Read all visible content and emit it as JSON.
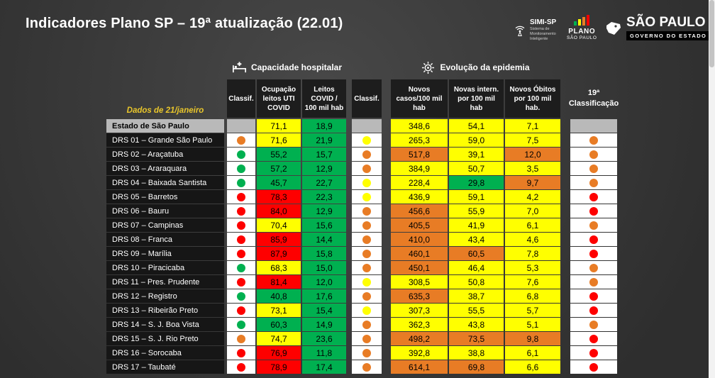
{
  "title": "Indicadores Plano SP – 19ª atualização (22.01)",
  "date_label": "Dados de 21/janeiro",
  "sections": {
    "hospital": "Capacidade hospitalar",
    "epidemia": "Evolução da epidemia"
  },
  "logos": {
    "simi": {
      "name": "SIMI-SP",
      "subtitle": "Sistema de Monitoramento Inteligente",
      "icon": "antenna-icon"
    },
    "plano": {
      "line1": "PLANO",
      "line2": "SÃO PAULO",
      "icon": "plano-bars-icon"
    },
    "gov": {
      "line1": "SÃO PAULO",
      "line2": "GOVERNO DO ESTADO",
      "icon": "sp-state-map-icon"
    }
  },
  "colors": {
    "green": "#00b050",
    "yellow": "#ffff00",
    "orange": "#e87c25",
    "red": "#fe0000",
    "gray": "#b9b9b9"
  },
  "chart_data": {
    "type": "table",
    "title": "Indicadores Plano SP – 19ª atualização (22.01)",
    "columns": [
      "",
      "Classif.",
      "Ocupação leitos UTI COVID",
      "Leitos COVID / 100 mil hab",
      "Classif.",
      "Novos casos/100 mil hab",
      "Novas intern. por 100 mil hab",
      "Novos Óbitos por 100 mil hab.",
      "19ª Classificação"
    ],
    "rows": [
      {
        "name": "Estado de São Paulo",
        "state": true,
        "d1": null,
        "uti": "71,1",
        "utiC": "yellow",
        "leitos": "18,9",
        "leitosC": "green",
        "d2": null,
        "casos": "348,6",
        "casosC": "yellow",
        "intern": "54,1",
        "internC": "yellow",
        "obitos": "7,1",
        "obitosC": "yellow",
        "d19": null
      },
      {
        "name": "DRS 01 – Grande São Paulo",
        "d1": "orange",
        "uti": "71,6",
        "utiC": "yellow",
        "leitos": "21,9",
        "leitosC": "green",
        "d2": "yellow",
        "casos": "265,3",
        "casosC": "yellow",
        "intern": "59,0",
        "internC": "yellow",
        "obitos": "7,5",
        "obitosC": "yellow",
        "d19": "orange"
      },
      {
        "name": "DRS 02 – Araçatuba",
        "d1": "green",
        "uti": "55,2",
        "utiC": "green",
        "leitos": "15,7",
        "leitosC": "green",
        "d2": "orange",
        "casos": "517,8",
        "casosC": "orange",
        "intern": "39,1",
        "internC": "yellow",
        "obitos": "12,0",
        "obitosC": "orange",
        "d19": "orange"
      },
      {
        "name": "DRS 03 – Araraquara",
        "d1": "green",
        "uti": "57,2",
        "utiC": "green",
        "leitos": "12,9",
        "leitosC": "green",
        "d2": "orange",
        "casos": "384,9",
        "casosC": "yellow",
        "intern": "50,7",
        "internC": "yellow",
        "obitos": "3,5",
        "obitosC": "yellow",
        "d19": "orange"
      },
      {
        "name": "DRS 04 – Baixada Santista",
        "d1": "green",
        "uti": "45,7",
        "utiC": "green",
        "leitos": "22,7",
        "leitosC": "green",
        "d2": "yellow",
        "casos": "228,4",
        "casosC": "yellow",
        "intern": "29,8",
        "internC": "green",
        "obitos": "9,7",
        "obitosC": "orange",
        "d19": "orange"
      },
      {
        "name": "DRS 05 – Barretos",
        "d1": "red",
        "uti": "78,3",
        "utiC": "red",
        "leitos": "22,3",
        "leitosC": "green",
        "d2": "yellow",
        "casos": "436,9",
        "casosC": "yellow",
        "intern": "59,1",
        "internC": "yellow",
        "obitos": "4,2",
        "obitosC": "yellow",
        "d19": "red"
      },
      {
        "name": "DRS 06 – Bauru",
        "d1": "red",
        "uti": "84,0",
        "utiC": "red",
        "leitos": "12,9",
        "leitosC": "green",
        "d2": "orange",
        "casos": "456,6",
        "casosC": "orange",
        "intern": "55,9",
        "internC": "yellow",
        "obitos": "7,0",
        "obitosC": "yellow",
        "d19": "red"
      },
      {
        "name": "DRS 07 – Campinas",
        "d1": "red",
        "uti": "70,4",
        "utiC": "yellow",
        "leitos": "15,6",
        "leitosC": "green",
        "d2": "orange",
        "casos": "405,5",
        "casosC": "orange",
        "intern": "41,9",
        "internC": "yellow",
        "obitos": "6,1",
        "obitosC": "yellow",
        "d19": "orange"
      },
      {
        "name": "DRS 08 – Franca",
        "d1": "red",
        "uti": "85,9",
        "utiC": "red",
        "leitos": "14,4",
        "leitosC": "green",
        "d2": "orange",
        "casos": "410,0",
        "casosC": "orange",
        "intern": "43,4",
        "internC": "yellow",
        "obitos": "4,6",
        "obitosC": "yellow",
        "d19": "red"
      },
      {
        "name": "DRS 09 – Marília",
        "d1": "red",
        "uti": "87,9",
        "utiC": "red",
        "leitos": "15,8",
        "leitosC": "green",
        "d2": "orange",
        "casos": "460,1",
        "casosC": "orange",
        "intern": "60,5",
        "internC": "orange",
        "obitos": "7,8",
        "obitosC": "yellow",
        "d19": "red"
      },
      {
        "name": "DRS 10 – Piracicaba",
        "d1": "green",
        "uti": "68,3",
        "utiC": "yellow",
        "leitos": "15,0",
        "leitosC": "green",
        "d2": "orange",
        "casos": "450,1",
        "casosC": "orange",
        "intern": "46,4",
        "internC": "yellow",
        "obitos": "5,3",
        "obitosC": "yellow",
        "d19": "orange"
      },
      {
        "name": "DRS 11 – Pres. Prudente",
        "d1": "red",
        "uti": "81,4",
        "utiC": "red",
        "leitos": "12,0",
        "leitosC": "green",
        "d2": "yellow",
        "casos": "308,5",
        "casosC": "yellow",
        "intern": "50,8",
        "internC": "yellow",
        "obitos": "7,6",
        "obitosC": "yellow",
        "d19": "orange"
      },
      {
        "name": "DRS 12 – Registro",
        "d1": "green",
        "uti": "40,8",
        "utiC": "green",
        "leitos": "17,6",
        "leitosC": "green",
        "d2": "orange",
        "casos": "635,3",
        "casosC": "orange",
        "intern": "38,7",
        "internC": "yellow",
        "obitos": "6,8",
        "obitosC": "yellow",
        "d19": "red"
      },
      {
        "name": "DRS 13 – Ribeirão Preto",
        "d1": "red",
        "uti": "73,1",
        "utiC": "yellow",
        "leitos": "15,4",
        "leitosC": "green",
        "d2": "yellow",
        "casos": "307,3",
        "casosC": "yellow",
        "intern": "55,5",
        "internC": "yellow",
        "obitos": "5,7",
        "obitosC": "yellow",
        "d19": "red"
      },
      {
        "name": "DRS 14 – S. J. Boa Vista",
        "d1": "green",
        "uti": "60,3",
        "utiC": "green",
        "leitos": "14,9",
        "leitosC": "green",
        "d2": "orange",
        "casos": "362,3",
        "casosC": "yellow",
        "intern": "43,8",
        "internC": "yellow",
        "obitos": "5,1",
        "obitosC": "yellow",
        "d19": "orange"
      },
      {
        "name": "DRS 15 – S. J. Rio Preto",
        "d1": "orange",
        "uti": "74,7",
        "utiC": "yellow",
        "leitos": "23,6",
        "leitosC": "green",
        "d2": "orange",
        "casos": "498,2",
        "casosC": "orange",
        "intern": "73,5",
        "internC": "orange",
        "obitos": "9,8",
        "obitosC": "orange",
        "d19": "red"
      },
      {
        "name": "DRS 16 – Sorocaba",
        "d1": "red",
        "uti": "76,9",
        "utiC": "red",
        "leitos": "11,8",
        "leitosC": "green",
        "d2": "orange",
        "casos": "392,8",
        "casosC": "yellow",
        "intern": "38,8",
        "internC": "yellow",
        "obitos": "6,1",
        "obitosC": "yellow",
        "d19": "red"
      },
      {
        "name": "DRS 17 – Taubaté",
        "d1": "red",
        "uti": "78,9",
        "utiC": "red",
        "leitos": "17,4",
        "leitosC": "green",
        "d2": "orange",
        "casos": "614,1",
        "casosC": "orange",
        "intern": "69,8",
        "internC": "orange",
        "obitos": "6,6",
        "obitosC": "yellow",
        "d19": "red"
      }
    ]
  }
}
